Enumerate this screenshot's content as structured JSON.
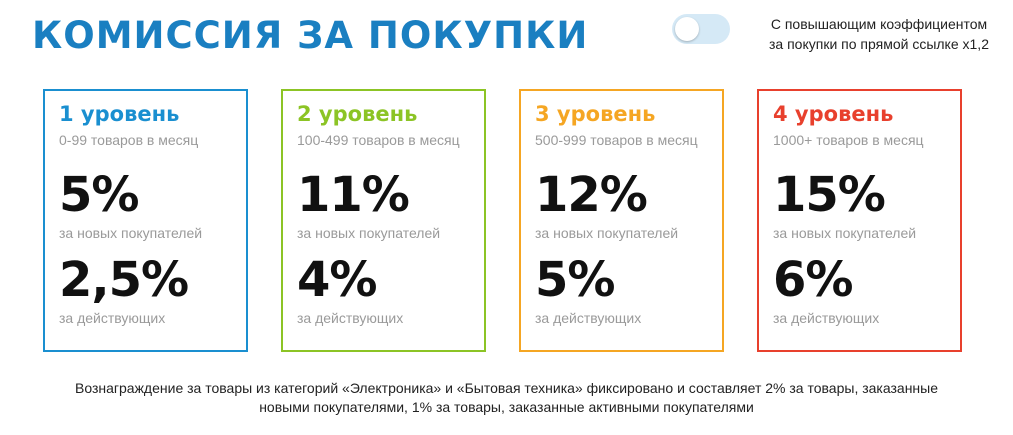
{
  "header": {
    "title": "КОМИССИЯ ЗА ПОКУПКИ",
    "toggle_label_line1": "С повышающим коэффициентом",
    "toggle_label_line2": "за покупки по прямой ссылке х1,2",
    "toggle_on": false
  },
  "levels": [
    {
      "title": "1 уровень",
      "range": "0-99 товаров в месяц",
      "new_rate": "5%",
      "new_label": "за новых покупателей",
      "active_rate": "2,5%",
      "active_label": "за действующих",
      "color": "#1a8fd0"
    },
    {
      "title": "2 уровень",
      "range": "100-499 товаров в месяц",
      "new_rate": "11%",
      "new_label": "за новых покупателей",
      "active_rate": "4%",
      "active_label": "за действующих",
      "color": "#8cc425"
    },
    {
      "title": "3 уровень",
      "range": "500-999 товаров в месяц",
      "new_rate": "12%",
      "new_label": "за новых покупателей",
      "active_rate": "5%",
      "active_label": "за действующих",
      "color": "#f5a623"
    },
    {
      "title": "4 уровень",
      "range": "1000+ товаров в месяц",
      "new_rate": "15%",
      "new_label": "за новых покупателей",
      "active_rate": "6%",
      "active_label": "за действующих",
      "color": "#e8402d"
    }
  ],
  "footer": {
    "line1": "Вознаграждение за товары из категорий «Электроника» и «Бытовая техника» фиксировано и составляет 2% за товары, заказанные",
    "line2": "новыми покупателями, 1% за товары, заказанные активными покупателями"
  }
}
